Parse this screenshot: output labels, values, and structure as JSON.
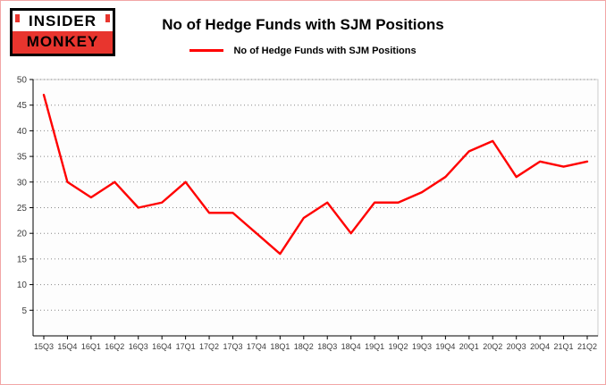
{
  "header": {
    "logo_line1": "INSIDER",
    "logo_line2": "MONKEY",
    "title": "No of Hedge Funds with SJM Positions",
    "legend_label": "No of Hedge Funds with SJM Positions"
  },
  "colors": {
    "line": "#ff0000",
    "logo_red": "#e8352e",
    "frame_border": "#f2a6a6",
    "grid": "#888888",
    "axis": "#000000",
    "tick_text": "#3c3c3c"
  },
  "chart_data": {
    "type": "line",
    "title": "No of Hedge Funds with SJM Positions",
    "xlabel": "",
    "ylabel": "",
    "categories": [
      "15Q3",
      "15Q4",
      "16Q1",
      "16Q2",
      "16Q3",
      "16Q4",
      "17Q1",
      "17Q2",
      "17Q3",
      "17Q4",
      "18Q1",
      "18Q2",
      "18Q3",
      "18Q4",
      "19Q1",
      "19Q2",
      "19Q3",
      "19Q4",
      "20Q1",
      "20Q2",
      "20Q3",
      "20Q4",
      "21Q1",
      "21Q2"
    ],
    "series": [
      {
        "name": "No of Hedge Funds with SJM Positions",
        "values": [
          47,
          30,
          27,
          30,
          25,
          26,
          30,
          24,
          24,
          20,
          16,
          23,
          26,
          20,
          26,
          26,
          28,
          31,
          36,
          38,
          31,
          34,
          33,
          34
        ]
      }
    ],
    "ylim": [
      0,
      50
    ],
    "y_ticks": [
      5,
      10,
      15,
      20,
      25,
      30,
      35,
      40,
      45,
      50
    ],
    "grid": true,
    "grid_style": "dotted",
    "legend_position": "top-center"
  }
}
